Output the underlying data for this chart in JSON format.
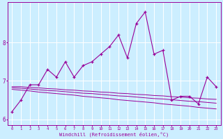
{
  "x": [
    0,
    1,
    2,
    3,
    4,
    5,
    6,
    7,
    8,
    9,
    10,
    11,
    12,
    13,
    14,
    15,
    16,
    17,
    18,
    19,
    20,
    21,
    22,
    23
  ],
  "y_main": [
    6.2,
    6.5,
    6.9,
    6.9,
    7.3,
    7.1,
    7.5,
    7.1,
    7.4,
    7.5,
    7.7,
    7.9,
    8.2,
    7.6,
    8.5,
    8.8,
    7.7,
    7.8,
    6.5,
    6.6,
    6.6,
    6.4,
    7.1,
    6.85
  ],
  "y_trend1": [
    6.85,
    6.85,
    6.83,
    6.82,
    6.8,
    6.79,
    6.77,
    6.76,
    6.74,
    6.73,
    6.71,
    6.7,
    6.68,
    6.67,
    6.65,
    6.64,
    6.62,
    6.61,
    6.59,
    6.58,
    6.56,
    6.55,
    6.53,
    6.52
  ],
  "y_trend2": [
    6.82,
    6.81,
    6.79,
    6.77,
    6.75,
    6.74,
    6.72,
    6.7,
    6.68,
    6.67,
    6.65,
    6.63,
    6.61,
    6.6,
    6.58,
    6.56,
    6.54,
    6.53,
    6.51,
    6.49,
    6.47,
    6.46,
    6.44,
    6.42
  ],
  "y_trend3": [
    6.78,
    6.76,
    6.74,
    6.71,
    6.69,
    6.67,
    6.65,
    6.63,
    6.6,
    6.58,
    6.56,
    6.54,
    6.51,
    6.49,
    6.47,
    6.45,
    6.43,
    6.4,
    6.38,
    6.36,
    6.34,
    6.31,
    6.29,
    6.27
  ],
  "line_color": "#990099",
  "bg_color": "#cceeff",
  "grid_color": "#ffffff",
  "xlim": [
    -0.5,
    23.5
  ],
  "ylim": [
    5.85,
    9.05
  ],
  "yticks": [
    6,
    7,
    8
  ],
  "xticks": [
    0,
    1,
    2,
    3,
    4,
    5,
    6,
    7,
    8,
    9,
    10,
    11,
    12,
    13,
    14,
    15,
    16,
    17,
    18,
    19,
    20,
    21,
    22,
    23
  ],
  "xlabel": "Windchill (Refroidissement éolien,°C)"
}
